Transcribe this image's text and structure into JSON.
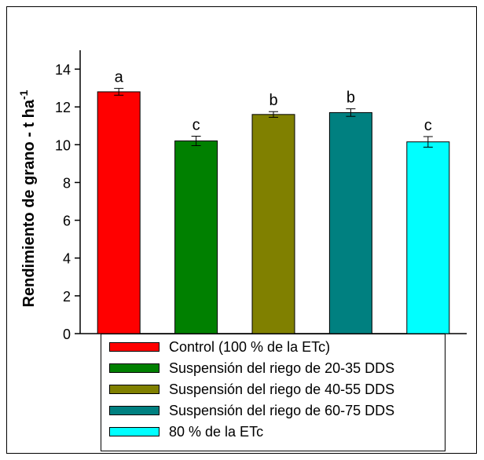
{
  "chart_data": {
    "type": "bar",
    "categories": [
      "Control (100 % de la ETc)",
      "Suspensión del riego de 20-35 DDS",
      "Suspensión del riego de 40-55 DDS",
      "Suspensión del riego de 60-75 DDS",
      "80 % de la ETc"
    ],
    "values": [
      12.8,
      10.2,
      11.6,
      11.7,
      10.15
    ],
    "errors": [
      0.18,
      0.25,
      0.15,
      0.2,
      0.28
    ],
    "significance_letters": [
      "a",
      "c",
      "b",
      "b",
      "c"
    ],
    "colors": [
      "#ff0000",
      "#008000",
      "#808000",
      "#008080",
      "#00ffff"
    ],
    "ylabel": "Rendimiento de grano - t ha",
    "ylabel_superscript": "-1",
    "ylim": [
      0,
      15
    ],
    "yticks": [
      "0",
      "2",
      "4",
      "6",
      "8",
      "10",
      "12",
      "14"
    ],
    "legend_position": "bottom",
    "grid": false
  }
}
